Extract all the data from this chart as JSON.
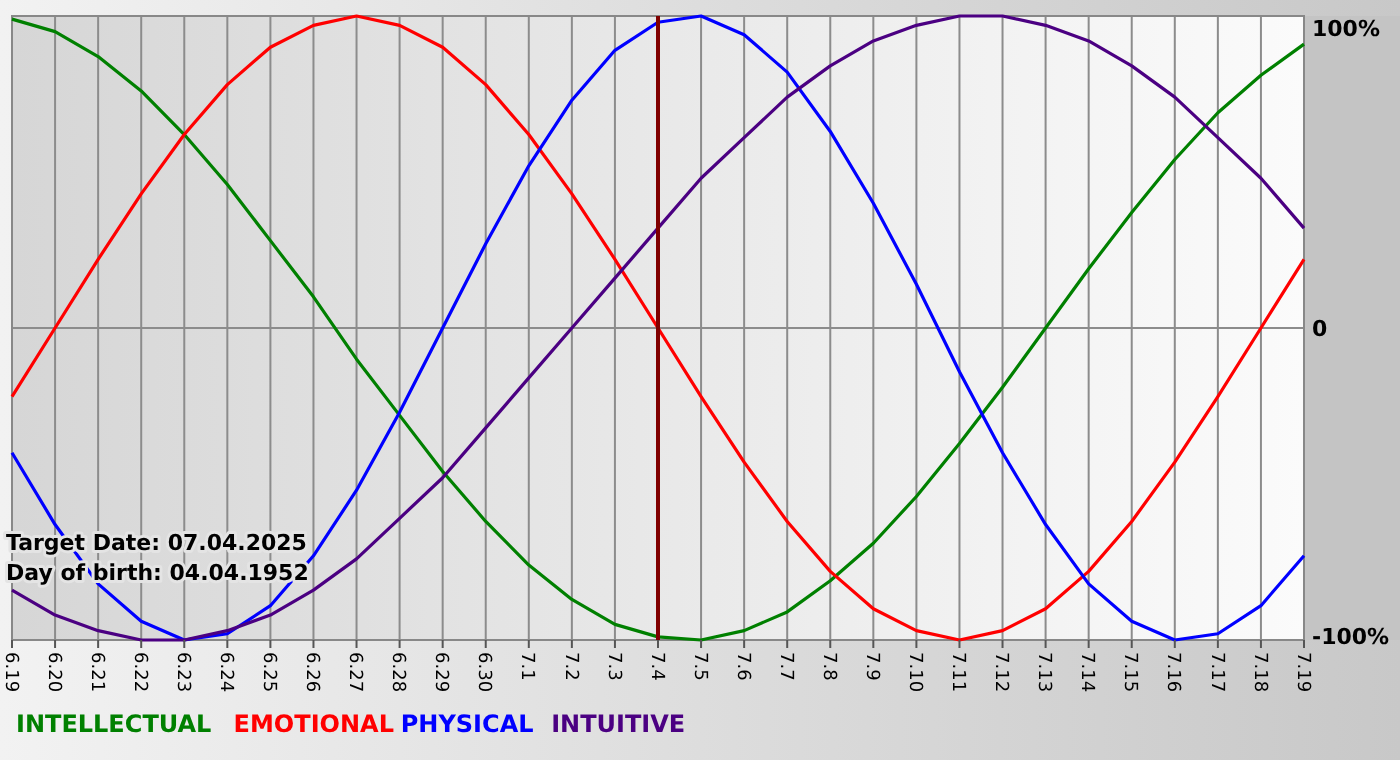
{
  "chart_data": {
    "type": "line",
    "categories": [
      "6.19",
      "6.20",
      "6.21",
      "6.22",
      "6.23",
      "6.24",
      "6.25",
      "6.26",
      "6.27",
      "6.28",
      "6.29",
      "6.30",
      "7.1",
      "7.2",
      "7.3",
      "7.4",
      "7.5",
      "7.6",
      "7.7",
      "7.8",
      "7.9",
      "7.10",
      "7.11",
      "7.12",
      "7.13",
      "7.14",
      "7.15",
      "7.16",
      "7.17",
      "7.18",
      "7.19"
    ],
    "series": [
      {
        "name": "INTELLECTUAL",
        "color": "#008000",
        "values": [
          99,
          95,
          87,
          76,
          62,
          46,
          28,
          10,
          -10,
          -28,
          -46,
          -62,
          -76,
          -87,
          -95,
          -99,
          -100,
          -97,
          -91,
          -81,
          -69,
          -54,
          -37,
          -19,
          0,
          19,
          37,
          54,
          69,
          81,
          91
        ]
      },
      {
        "name": "EMOTIONAL",
        "color": "#ff0000",
        "values": [
          -22,
          0,
          22,
          43,
          62,
          78,
          90,
          97,
          100,
          97,
          90,
          78,
          62,
          43,
          22,
          0,
          -22,
          -43,
          -62,
          -78,
          -90,
          -97,
          -100,
          -97,
          -90,
          -78,
          -62,
          -43,
          -22,
          0,
          22
        ]
      },
      {
        "name": "PHYSICAL",
        "color": "#0000ff",
        "values": [
          -40,
          -63,
          -82,
          -94,
          -100,
          -98,
          -89,
          -73,
          -52,
          -27,
          0,
          27,
          52,
          73,
          89,
          98,
          100,
          94,
          82,
          63,
          40,
          14,
          -14,
          -40,
          -63,
          -82,
          -94,
          -100,
          -98,
          -89,
          -73
        ]
      },
      {
        "name": "INTUITIVE",
        "color": "#4b0082",
        "values": [
          -84,
          -92,
          -97,
          -100,
          -100,
          -97,
          -92,
          -84,
          -74,
          -61,
          -48,
          -32,
          -16,
          0,
          16,
          32,
          48,
          61,
          74,
          84,
          92,
          97,
          100,
          100,
          97,
          92,
          84,
          74,
          61,
          48,
          32
        ]
      }
    ],
    "ylim": [
      -100,
      100
    ],
    "yticks": [
      {
        "value": 100,
        "label": "100%"
      },
      0,
      {
        "value": -100,
        "label": "-100%"
      }
    ],
    "grid": true,
    "legend": "bottom left",
    "marker": "none",
    "line_style": "solid",
    "ref_lines": [
      {
        "axis": "x",
        "value": "7.4",
        "color": "#800000"
      }
    ],
    "annotations": [
      "Target Date: 07.04.2025",
      "Day of birth: 04.04.1952"
    ]
  }
}
